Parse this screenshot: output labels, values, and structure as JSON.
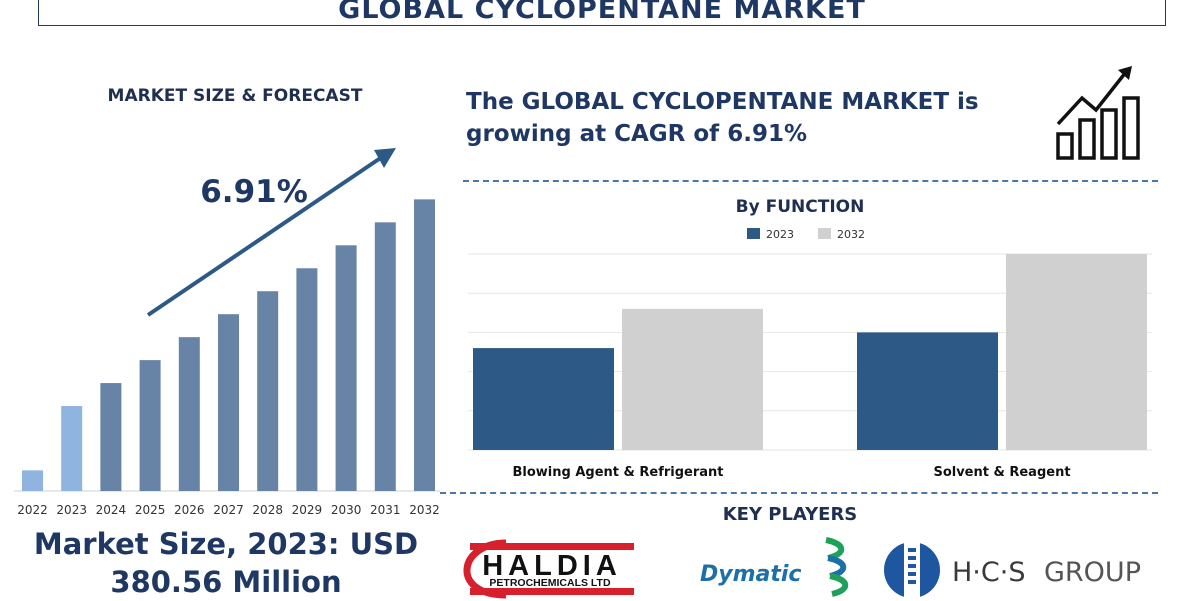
{
  "header": {
    "title": "GLOBAL CYCLOPENTANE MARKET"
  },
  "left_panel": {
    "title": "MARKET SIZE & FORECAST",
    "cagr_label": "6.91%",
    "market_size_line1": "Market Size, 2023: USD",
    "market_size_line2": "380.56 Million"
  },
  "headline": {
    "line1": "The GLOBAL CYCLOPENTANE MARKET is",
    "line2": "growing at CAGR of 6.91%"
  },
  "key_players": {
    "title": "KEY PLAYERS",
    "haldia_main": "HALDIA",
    "haldia_sub": "PETROCHEMICALS LTD",
    "dymatic": "Dymatic",
    "hcs_main": "H·C·S",
    "hcs_group": "GROUP"
  },
  "colors": {
    "navy": "#1f3763",
    "bar_forecast": "#6783a6",
    "bar_2022": "#8fb4e0",
    "bar_2023": "#8fb4e0",
    "series_2023": "#2d5986",
    "series_2032": "#d0d0d0",
    "haldia_red": "#d7202d",
    "dymatic_green": "#1ea15a",
    "dymatic_blue": "#1d6fa8",
    "hcs_blue": "#1e56a0"
  },
  "chart_data": [
    {
      "type": "bar",
      "title": "MARKET SIZE & FORECAST",
      "categories": [
        "2022",
        "2023",
        "2024",
        "2025",
        "2026",
        "2027",
        "2028",
        "2029",
        "2030",
        "2031",
        "2032"
      ],
      "values": [
        0.9,
        3.7,
        4.7,
        5.7,
        6.7,
        7.7,
        8.7,
        9.7,
        10.7,
        11.7,
        12.7
      ],
      "ylim": [
        0,
        13.5
      ],
      "highlight_years": [
        "2022",
        "2023"
      ],
      "annotation": "6.91%",
      "grid": false
    },
    {
      "type": "bar",
      "title": "By FUNCTION",
      "categories": [
        "Blowing Agent & Refrigerant",
        "Solvent & Reagent"
      ],
      "series": [
        {
          "name": "2023",
          "values": [
            1.3,
            1.5
          ]
        },
        {
          "name": "2032",
          "values": [
            1.8,
            2.5
          ]
        }
      ],
      "ylim": [
        0,
        2.5
      ],
      "legend": "top-center",
      "grid": true
    }
  ]
}
